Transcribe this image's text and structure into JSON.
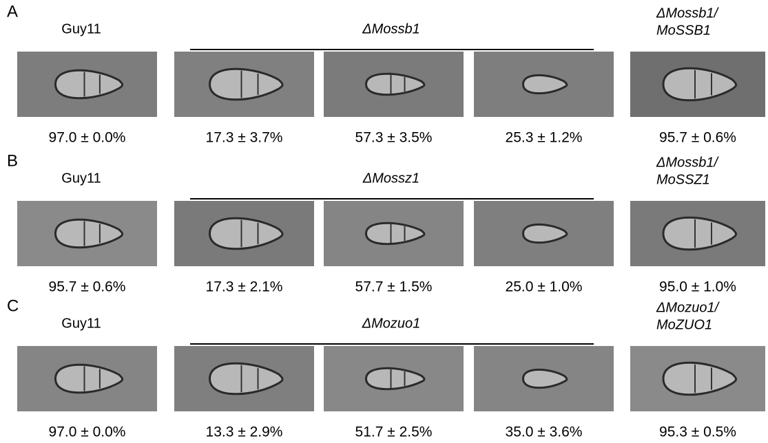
{
  "panels": [
    {
      "letter": "A",
      "wild_type": "Guy11",
      "mutant": "ΔMossb1",
      "complement": [
        "ΔMossb1/",
        "MoSSB1"
      ],
      "percentages": [
        "97.0 ± 0.0%",
        "17.3 ± 3.7%",
        "57.3 ± 3.5%",
        "25.3 ± 1.2%",
        "95.7 ± 0.6%"
      ]
    },
    {
      "letter": "B",
      "wild_type": "Guy11",
      "mutant": "ΔMossz1",
      "complement": [
        "ΔMossb1/",
        "MoSSZ1"
      ],
      "percentages": [
        "95.7 ± 0.6%",
        "17.3 ± 2.1%",
        "57.7 ± 1.5%",
        "25.0 ± 1.0%",
        "95.0 ± 1.0%"
      ]
    },
    {
      "letter": "C",
      "wild_type": "Guy11",
      "mutant": "ΔMozuo1",
      "complement": [
        "ΔMozuo1/",
        "MoZUO1"
      ],
      "percentages": [
        "97.0 ± 0.0%",
        "13.3 ± 2.9%",
        "51.7 ± 2.5%",
        "35.0 ± 3.6%",
        "95.3 ± 0.5%"
      ]
    }
  ]
}
